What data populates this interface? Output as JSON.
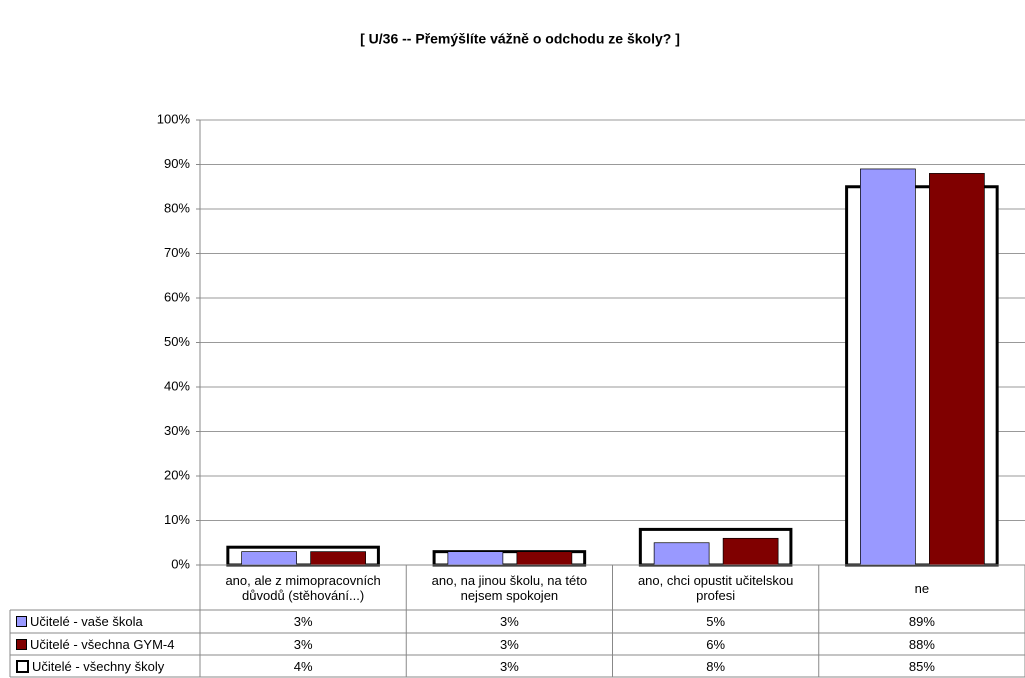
{
  "chart_data": {
    "type": "bar",
    "title": "[ U/36 -- Přemýšlíte vážně o odchodu ze školy? ]",
    "categories": [
      "ano, ale z mimopracovních důvodů (stěhování...)",
      "ano, na jinou školu, na této nejsem spokojen",
      "ano, chci opustit učitelskou profesi",
      "ne"
    ],
    "series": [
      {
        "name": "Učitelé - vaše škola",
        "color": "#9999ff",
        "values": [
          3,
          3,
          5,
          89
        ],
        "value_labels": [
          "3%",
          "3%",
          "5%",
          "89%"
        ]
      },
      {
        "name": "Učitelé - všechna GYM-4",
        "color": "#800000",
        "values": [
          3,
          3,
          6,
          88
        ],
        "value_labels": [
          "3%",
          "3%",
          "6%",
          "88%"
        ]
      },
      {
        "name": "Učitelé - všechny školy",
        "color": "#ffffff",
        "values": [
          4,
          3,
          8,
          85
        ],
        "value_labels": [
          "4%",
          "3%",
          "8%",
          "85%"
        ]
      }
    ],
    "ylim": [
      0,
      100
    ],
    "yticks": [
      {
        "value": 0,
        "label": "0%"
      },
      {
        "value": 10,
        "label": "10%"
      },
      {
        "value": 20,
        "label": "20%"
      },
      {
        "value": 30,
        "label": "30%"
      },
      {
        "value": 40,
        "label": "40%"
      },
      {
        "value": 50,
        "label": "50%"
      },
      {
        "value": 60,
        "label": "60%"
      },
      {
        "value": 70,
        "label": "70%"
      },
      {
        "value": 80,
        "label": "80%"
      },
      {
        "value": 90,
        "label": "90%"
      },
      {
        "value": 100,
        "label": "100%"
      }
    ],
    "grid": true
  }
}
